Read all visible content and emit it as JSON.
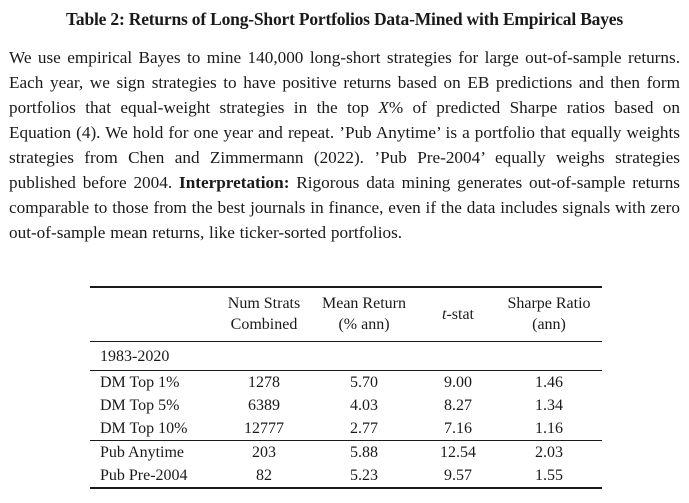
{
  "colors": {
    "background": "#ffffff",
    "text": "#1a1a1a",
    "rule": "#1a1a1a"
  },
  "title": "Table 2: Returns of Long-Short Portfolios Data-Mined with Empirical Bayes",
  "caption": {
    "segments": [
      {
        "text": "We use empirical Bayes to mine 140,000 long-short strategies for large out-of-sample returns. Each year, we sign strategies to have positive returns based on EB predictions and then form portfolios that equal-weight strategies in the top ",
        "style": "normal"
      },
      {
        "text": "X",
        "style": "italic"
      },
      {
        "text": "% of predicted Sharpe ratios based on Equation (4). We hold for one year and repeat. ’Pub Anytime’ is a portfolio that equally weights strategies from Chen and Zimmermann (2022). ’Pub Pre-2004’ equally weighs strategies published before 2004. ",
        "style": "normal"
      },
      {
        "text": "Interpretation:",
        "style": "bold"
      },
      {
        "text": " Rigorous data mining generates out-of-sample returns comparable to those from the best journals in finance, even if the data includes signals with zero out-of-sample mean returns, like ticker-sorted portfolios.",
        "style": "normal"
      }
    ]
  },
  "table": {
    "header": {
      "num_strats": {
        "line1": "Num Strats",
        "line2": "Combined"
      },
      "mean_return": {
        "line1": "Mean Return",
        "line2": "(% ann)"
      },
      "t_stat": {
        "italic": "t",
        "rest": "-stat"
      },
      "sharpe": {
        "line1": "Sharpe Ratio",
        "line2": "(ann)"
      }
    },
    "section_label": "1983-2020",
    "groups": [
      {
        "rows": [
          {
            "label": "DM Top 1%",
            "values": [
              "1278",
              "5.70",
              "9.00",
              "1.46"
            ]
          },
          {
            "label": "DM Top 5%",
            "values": [
              "6389",
              "4.03",
              "8.27",
              "1.34"
            ]
          },
          {
            "label": "DM Top 10%",
            "values": [
              "12777",
              "2.77",
              "7.16",
              "1.16"
            ]
          }
        ]
      },
      {
        "rows": [
          {
            "label": "Pub Anytime",
            "values": [
              "203",
              "5.88",
              "12.54",
              "2.03"
            ]
          },
          {
            "label": "Pub Pre-2004",
            "values": [
              "82",
              "5.23",
              "9.57",
              "1.55"
            ]
          }
        ]
      }
    ]
  },
  "chart_data": {
    "type": "table",
    "title": "Table 2: Returns of Long-Short Portfolios Data-Mined with Empirical Bayes",
    "columns": [
      "",
      "Num Strats Combined",
      "Mean Return (% ann)",
      "t-stat",
      "Sharpe Ratio (ann)"
    ],
    "section": "1983-2020",
    "rows": [
      [
        "DM Top 1%",
        1278,
        5.7,
        9.0,
        1.46
      ],
      [
        "DM Top 5%",
        6389,
        4.03,
        8.27,
        1.34
      ],
      [
        "DM Top 10%",
        12777,
        2.77,
        7.16,
        1.16
      ],
      [
        "Pub Anytime",
        203,
        5.88,
        12.54,
        2.03
      ],
      [
        "Pub Pre-2004",
        82,
        5.23,
        9.57,
        1.55
      ]
    ]
  }
}
